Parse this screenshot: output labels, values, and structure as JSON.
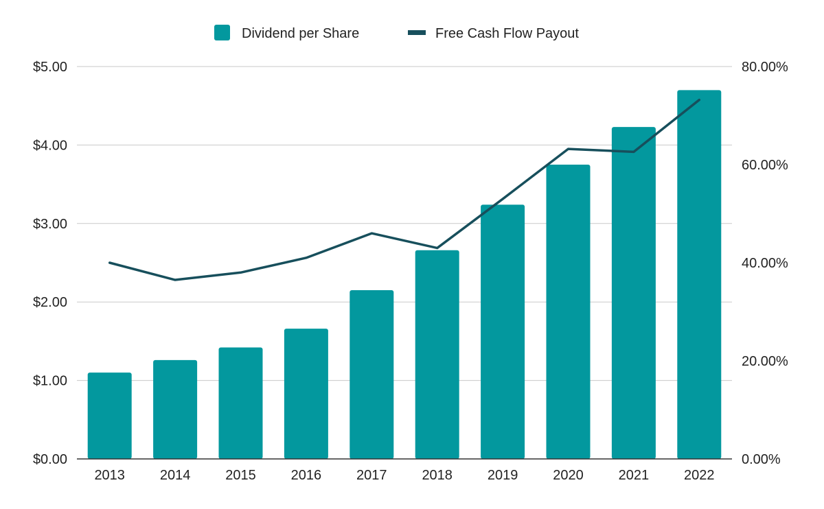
{
  "chart_data": {
    "type": "bar",
    "categories": [
      "2013",
      "2014",
      "2015",
      "2016",
      "2017",
      "2018",
      "2019",
      "2020",
      "2021",
      "2022"
    ],
    "series": [
      {
        "name": "Dividend per Share",
        "kind": "bar",
        "axis": "left",
        "color": "#03989e",
        "values": [
          1.1,
          1.26,
          1.42,
          1.66,
          2.15,
          2.66,
          3.24,
          3.75,
          4.23,
          4.7
        ]
      },
      {
        "name": "Free Cash Flow Payout",
        "kind": "line",
        "axis": "right",
        "color": "#174f5c",
        "values": [
          40.0,
          36.5,
          38.0,
          41.0,
          46.0,
          43.0,
          53.0,
          63.2,
          62.6,
          73.2
        ]
      }
    ],
    "y_left": {
      "min": 0,
      "max": 5,
      "ticks": [
        0,
        1,
        2,
        3,
        4,
        5
      ],
      "tick_labels": [
        "$0.00",
        "$1.00",
        "$2.00",
        "$3.00",
        "$4.00",
        "$5.00"
      ]
    },
    "y_right": {
      "min": 0,
      "max": 80,
      "ticks": [
        0,
        20,
        40,
        60,
        80
      ],
      "tick_labels": [
        "0.00%",
        "20.00%",
        "40.00%",
        "60.00%",
        "80.00%"
      ]
    },
    "legend": {
      "position": "top-center",
      "items": [
        "Dividend per Share",
        "Free Cash Flow Payout"
      ]
    },
    "grid": true,
    "title": "",
    "xlabel": "",
    "ylabel": ""
  }
}
